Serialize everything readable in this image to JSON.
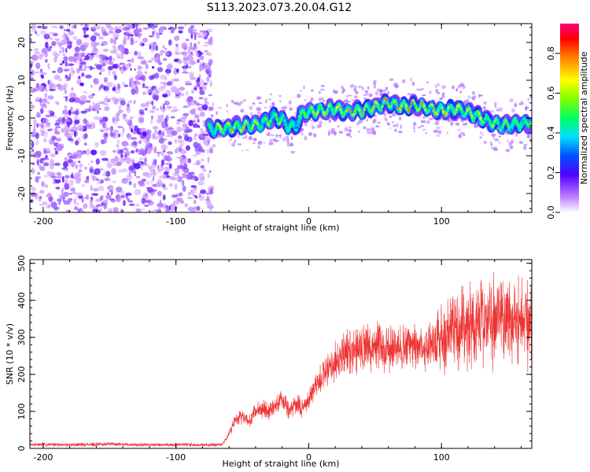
{
  "title": "S113.2023.073.20.04.G12",
  "chart_data": [
    {
      "type": "heatmap",
      "xlabel": "Height of straight line (km)",
      "ylabel": "Frequency (Hz)",
      "xlim": [
        -210,
        168
      ],
      "ylim": [
        -25,
        25
      ],
      "x_ticks": [
        -200,
        -100,
        0,
        100
      ],
      "y_ticks": [
        -20,
        -10,
        0,
        10,
        20
      ],
      "colorbar": {
        "label": "Normalized spectral amplitude",
        "range": [
          0,
          0.95
        ],
        "ticks": [
          0.0,
          0.2,
          0.4,
          0.6,
          0.8
        ]
      },
      "noise_region_x": [
        -210,
        -73
      ],
      "signal_track": {
        "x": [
          -75,
          -60,
          -45,
          -35,
          -25,
          -15,
          -10,
          -5,
          0,
          10,
          20,
          30,
          40,
          50,
          60,
          70,
          80,
          90,
          100,
          110,
          120,
          130,
          140,
          150,
          160,
          168
        ],
        "frequency": [
          -3,
          -2.5,
          -2,
          -1.5,
          0.5,
          -2,
          -2.5,
          1,
          1.5,
          2,
          2.5,
          1.5,
          2,
          3,
          4,
          3,
          3.5,
          2.5,
          2,
          2.5,
          1.5,
          0,
          -1.5,
          -2,
          -1.5,
          -1
        ],
        "peak_amplitude": [
          0.55,
          0.8,
          0.75,
          0.6,
          0.7,
          0.5,
          0.45,
          0.6,
          0.7,
          0.8,
          0.7,
          0.85,
          0.8,
          0.75,
          0.85,
          0.8,
          0.9,
          0.75,
          0.8,
          0.7,
          0.75,
          0.7,
          0.65,
          0.6,
          0.55,
          0.6
        ]
      }
    },
    {
      "type": "line",
      "xlabel": "Height of straight line (km)",
      "ylabel": "SNR (10 * v/v)",
      "xlim": [
        -210,
        168
      ],
      "ylim": [
        0,
        510
      ],
      "x_ticks": [
        -200,
        -100,
        0,
        100
      ],
      "y_ticks": [
        0,
        100,
        200,
        300,
        400,
        500
      ],
      "color": "#ee3333",
      "series": [
        {
          "x": [
            -210,
            -190,
            -170,
            -150,
            -130,
            -110,
            -90,
            -75,
            -65,
            -60,
            -55,
            -50,
            -45,
            -40,
            -35,
            -30,
            -25,
            -20,
            -15,
            -10,
            -5,
            0,
            5,
            10,
            15,
            20,
            25,
            30,
            40,
            50,
            60,
            70,
            80,
            90,
            100,
            110,
            120,
            130,
            140,
            150,
            160,
            168
          ],
          "values": [
            10,
            10,
            10,
            12,
            10,
            10,
            10,
            10,
            10,
            40,
            80,
            90,
            70,
            100,
            110,
            100,
            120,
            130,
            100,
            120,
            110,
            130,
            170,
            190,
            210,
            230,
            250,
            265,
            275,
            275,
            270,
            270,
            275,
            280,
            300,
            320,
            330,
            345,
            350,
            355,
            345,
            335
          ]
        }
      ]
    }
  ]
}
